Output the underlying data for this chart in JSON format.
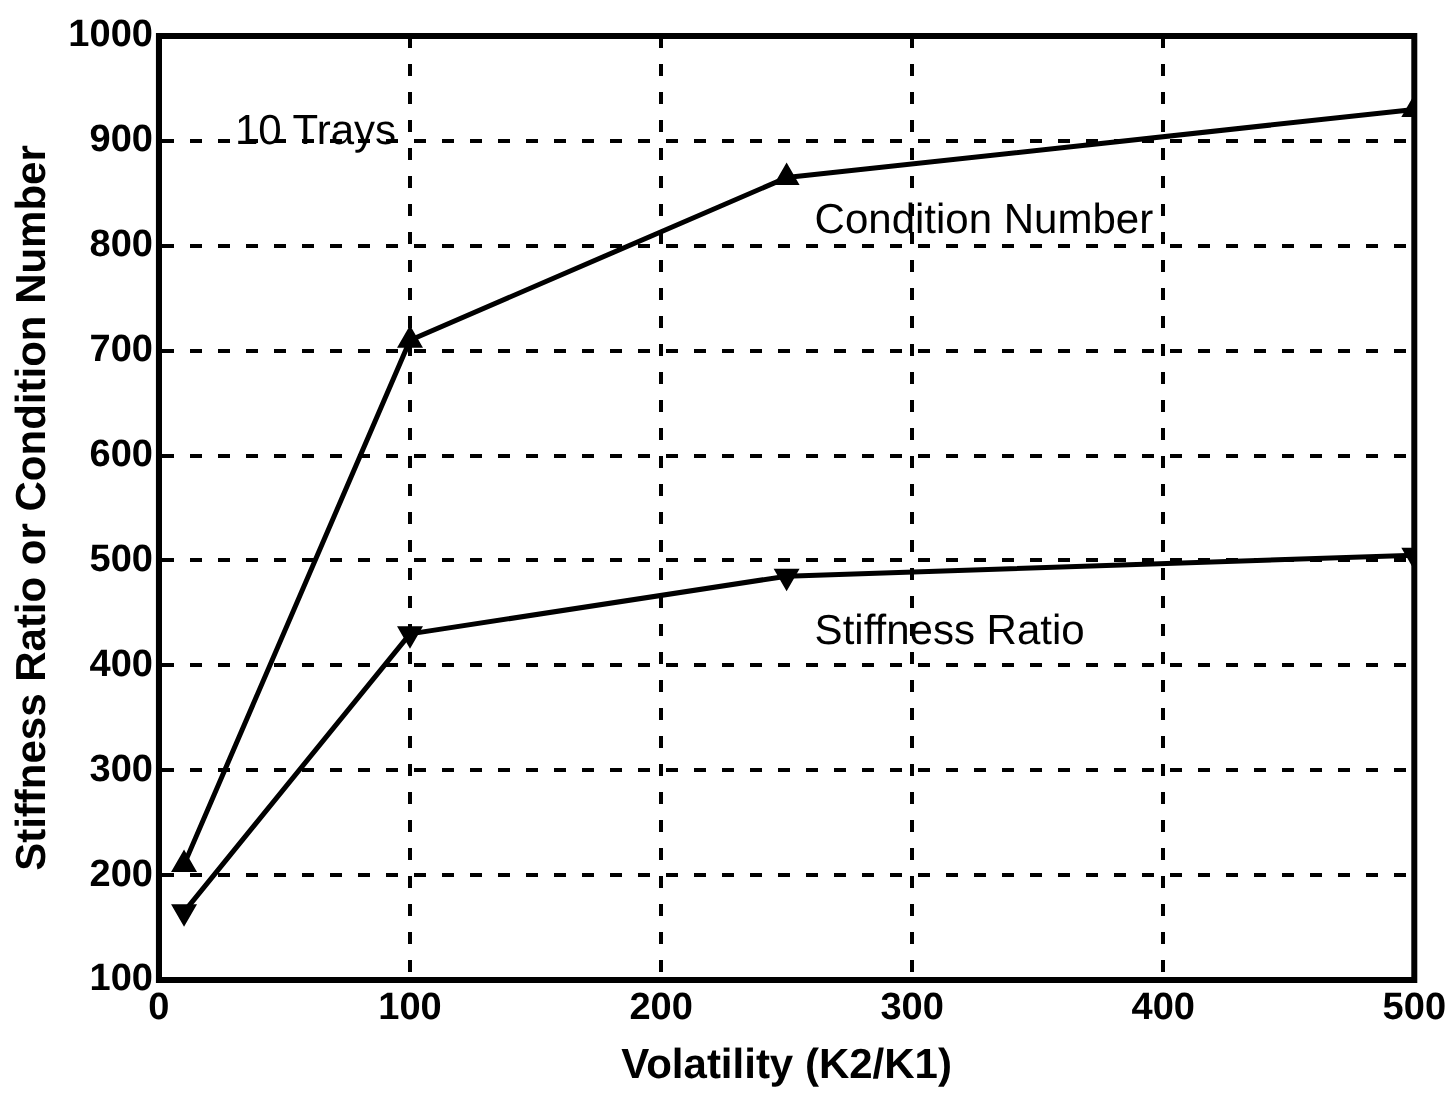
{
  "chart_data": {
    "type": "line",
    "xlabel": "Volatility (K2/K1)",
    "ylabel": "Stiffness Ratio or Condition Number",
    "annotations": [
      "10 Trays"
    ],
    "x": [
      10,
      100,
      250,
      500
    ],
    "series": [
      {
        "name": "Condition Number",
        "color": "#000000",
        "marker": "triangle",
        "values": [
          210,
          710,
          865,
          930
        ]
      },
      {
        "name": "Stiffness Ratio",
        "color": "#000000",
        "marker": "triangle-down",
        "values": [
          165,
          430,
          485,
          505
        ]
      }
    ],
    "xlim": [
      0,
      500
    ],
    "xticks": [
      0,
      100,
      200,
      300,
      400,
      500
    ],
    "ylim": [
      100,
      1000
    ],
    "yticks": [
      100,
      200,
      300,
      400,
      500,
      600,
      700,
      800,
      900,
      1000
    ],
    "grid": true,
    "legend": false,
    "line_style": "solid"
  }
}
